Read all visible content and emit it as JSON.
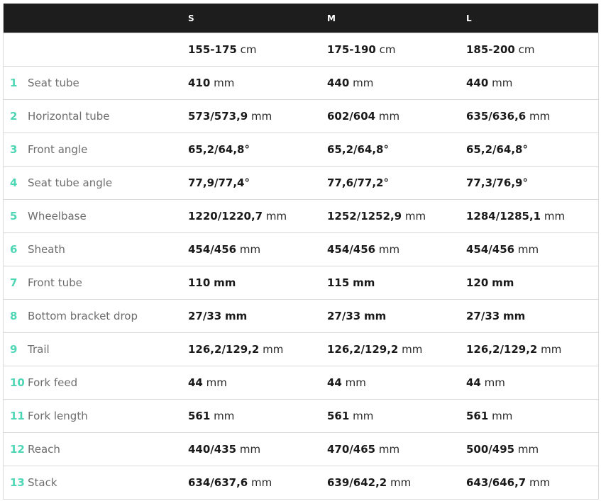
{
  "colors": {
    "header_bg": "#1d1d1d",
    "accent": "#4fd6b5",
    "label": "#6d6d6d"
  },
  "sizes": [
    "S",
    "M",
    "L"
  ],
  "heights": [
    {
      "value": "155-175",
      "unit": "cm"
    },
    {
      "value": "175-190",
      "unit": "cm"
    },
    {
      "value": "185-200",
      "unit": "cm"
    }
  ],
  "rows": [
    {
      "num": "1",
      "label": "Seat tube",
      "unit_bold": false,
      "values": [
        {
          "v": "410",
          "u": "mm"
        },
        {
          "v": "440",
          "u": "mm"
        },
        {
          "v": "440",
          "u": "mm"
        }
      ]
    },
    {
      "num": "2",
      "label": "Horizontal tube",
      "unit_bold": false,
      "values": [
        {
          "v": "573/573,9",
          "u": "mm"
        },
        {
          "v": "602/604",
          "u": "mm"
        },
        {
          "v": "635/636,6",
          "u": "mm"
        }
      ]
    },
    {
      "num": "3",
      "label": "Front angle",
      "unit_bold": false,
      "values": [
        {
          "v": "65,2/64,8°",
          "u": ""
        },
        {
          "v": "65,2/64,8°",
          "u": ""
        },
        {
          "v": "65,2/64,8°",
          "u": ""
        }
      ]
    },
    {
      "num": "4",
      "label": "Seat tube angle",
      "unit_bold": false,
      "values": [
        {
          "v": "77,9/77,4°",
          "u": ""
        },
        {
          "v": "77,6/77,2°",
          "u": ""
        },
        {
          "v": "77,3/76,9°",
          "u": ""
        }
      ]
    },
    {
      "num": "5",
      "label": "Wheelbase",
      "unit_bold": false,
      "values": [
        {
          "v": "1220/1220,7",
          "u": "mm"
        },
        {
          "v": "1252/1252,9",
          "u": "mm"
        },
        {
          "v": "1284/1285,1",
          "u": "mm"
        }
      ]
    },
    {
      "num": "6",
      "label": "Sheath",
      "unit_bold": false,
      "values": [
        {
          "v": "454/456",
          "u": "mm"
        },
        {
          "v": "454/456",
          "u": "mm"
        },
        {
          "v": "454/456",
          "u": "mm"
        }
      ]
    },
    {
      "num": "7",
      "label": "Front tube",
      "unit_bold": true,
      "values": [
        {
          "v": "110",
          "u": "mm"
        },
        {
          "v": "115",
          "u": "mm"
        },
        {
          "v": "120",
          "u": "mm"
        }
      ]
    },
    {
      "num": "8",
      "label": "Bottom bracket drop",
      "unit_bold": true,
      "values": [
        {
          "v": "27/33",
          "u": "mm"
        },
        {
          "v": "27/33",
          "u": "mm"
        },
        {
          "v": "27/33",
          "u": "mm"
        }
      ]
    },
    {
      "num": "9",
      "label": "Trail",
      "unit_bold": false,
      "values": [
        {
          "v": "126,2/129,2",
          "u": "mm"
        },
        {
          "v": "126,2/129,2",
          "u": "mm"
        },
        {
          "v": "126,2/129,2",
          "u": "mm"
        }
      ]
    },
    {
      "num": "10",
      "label": "Fork feed",
      "unit_bold": false,
      "values": [
        {
          "v": "44",
          "u": "mm"
        },
        {
          "v": "44",
          "u": "mm"
        },
        {
          "v": "44",
          "u": "mm"
        }
      ]
    },
    {
      "num": "11",
      "label": "Fork length",
      "unit_bold": false,
      "values": [
        {
          "v": "561",
          "u": "mm"
        },
        {
          "v": "561",
          "u": "mm"
        },
        {
          "v": "561",
          "u": "mm"
        }
      ]
    },
    {
      "num": "12",
      "label": "Reach",
      "unit_bold": false,
      "values": [
        {
          "v": "440/435",
          "u": "mm"
        },
        {
          "v": "470/465",
          "u": "mm"
        },
        {
          "v": "500/495",
          "u": "mm"
        }
      ]
    },
    {
      "num": "13",
      "label": "Stack",
      "unit_bold": false,
      "values": [
        {
          "v": "634/637,6",
          "u": "mm"
        },
        {
          "v": "639/642,2",
          "u": "mm"
        },
        {
          "v": "643/646,7",
          "u": "mm"
        }
      ]
    }
  ]
}
